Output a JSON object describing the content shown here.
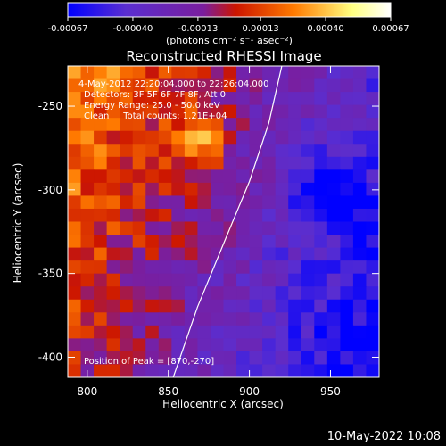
{
  "chart_data": {
    "type": "heatmap",
    "title": "Reconstructed RHESSI Image",
    "xlabel": "Heliocentric X (arcsec)",
    "ylabel": "Heliocentric Y (arcsec)",
    "xlim": [
      788,
      980
    ],
    "ylim": [
      -412,
      -226
    ],
    "x_ticks": [
      800,
      850,
      900,
      950
    ],
    "y_ticks": [
      -250,
      -300,
      -350,
      -400
    ],
    "colorbar": {
      "ticks": [
        "-0.00067",
        "-0.00040",
        "-0.00013",
        "0.00013",
        "0.00040",
        "0.00067"
      ],
      "tick_values": [
        -0.00067,
        -0.0004,
        -0.00013,
        0.00013,
        0.0004,
        0.00067
      ],
      "range": [
        -0.00067,
        0.00067
      ],
      "unit_label": "(photons cm⁻² s⁻¹ asec⁻²)",
      "colors": [
        "#0000ff",
        "#5a2ed0",
        "#7a1e9e",
        "#cc1500",
        "#ff7a00",
        "#ffff80",
        "#ffffff"
      ]
    },
    "annotations": {
      "time_range": "4-May-2012 22:20:04.000 to 22:26:04.000",
      "detectors": "Detectors: 3F 5F 6F 7F 8F, Att 0",
      "energy_range": "Energy Range: 25.0 - 50.0 keV",
      "clean_counts": "Clean     Total counts: 1.21E+04",
      "peak_position": "Position of Peak = [870,-270]"
    },
    "peak": {
      "x": 870,
      "y": -270
    },
    "limb_line": [
      [
        920,
        -226
      ],
      [
        912,
        -260
      ],
      [
        900,
        -295
      ],
      [
        885,
        -330
      ],
      [
        868,
        -370
      ],
      [
        853,
        -412
      ]
    ]
  },
  "footer": {
    "timestamp": "10-May-2022 10:08"
  }
}
